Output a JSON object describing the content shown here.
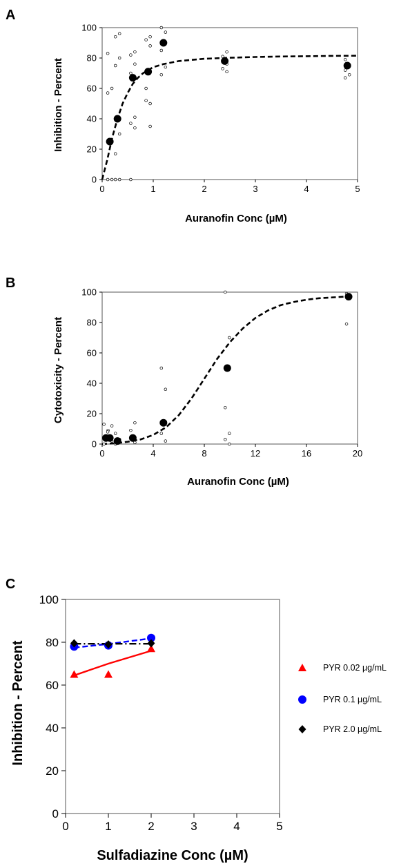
{
  "chart_data": [
    {
      "panel": "A",
      "type": "scatter",
      "xlabel": "Auranofin Conc (µM)",
      "ylabel": "Inhibition - Percent",
      "xlim": [
        0,
        5
      ],
      "ylim": [
        0,
        100
      ],
      "xticks": [
        "0",
        "1",
        "2",
        "3",
        "4",
        "5"
      ],
      "yticks": [
        "0",
        "20",
        "40",
        "60",
        "80",
        "100"
      ],
      "series": [
        {
          "role": "mean",
          "marker": "filled-circle",
          "x": [
            0.15,
            0.3,
            0.6,
            0.9,
            1.2,
            2.4,
            4.8
          ],
          "y": [
            25,
            40,
            67,
            71,
            90,
            78,
            75
          ]
        },
        {
          "role": "replicates",
          "marker": "open-circle",
          "x": [
            0.15,
            0.15,
            0.15,
            0.15,
            0.15,
            0.3,
            0.3,
            0.3,
            0.3,
            0.3,
            0.3,
            0.3,
            0.3,
            0.6,
            0.6,
            0.6,
            0.6,
            0.6,
            0.6,
            0.6,
            0.6,
            0.9,
            0.9,
            0.9,
            0.9,
            0.9,
            0.9,
            0.9,
            1.2,
            1.2,
            1.2,
            1.2,
            1.2,
            2.4,
            2.4,
            2.4,
            2.4,
            2.4,
            4.8,
            4.8,
            4.8,
            4.8,
            4.8
          ],
          "y": [
            83,
            60,
            57,
            0,
            0,
            96,
            94,
            80,
            75,
            30,
            17,
            0,
            0,
            84,
            82,
            76,
            70,
            41,
            37,
            34,
            0,
            94,
            92,
            88,
            60,
            50,
            52,
            35,
            100,
            97,
            85,
            74,
            69,
            84,
            81,
            76,
            73,
            71,
            79,
            75,
            72,
            69,
            67
          ]
        },
        {
          "role": "fit",
          "style": "dashed",
          "x": [
            0,
            0.1,
            0.2,
            0.3,
            0.4,
            0.5,
            0.6,
            0.7,
            0.8,
            0.9,
            1.0,
            1.2,
            1.5,
            2.0,
            2.5,
            3.0,
            3.5,
            4.0,
            4.5,
            5.0
          ],
          "y": [
            0,
            13,
            28,
            40,
            50,
            57,
            63,
            67,
            70,
            72,
            74,
            76,
            78,
            79.5,
            80.2,
            80.7,
            81,
            81.2,
            81.4,
            81.5
          ]
        }
      ]
    },
    {
      "panel": "B",
      "type": "scatter",
      "xlabel": "Auranofin Conc (µM)",
      "ylabel": "Cytotoxicity - Percent",
      "xlim": [
        0,
        20
      ],
      "ylim": [
        0,
        100
      ],
      "xticks": [
        "0",
        "4",
        "8",
        "12",
        "16",
        "20"
      ],
      "yticks": [
        "0",
        "20",
        "40",
        "60",
        "80",
        "100"
      ],
      "series": [
        {
          "role": "mean",
          "marker": "filled-circle",
          "x": [
            0.3,
            0.6,
            1.2,
            2.4,
            4.8,
            9.8,
            19.3
          ],
          "y": [
            4,
            4,
            2,
            4,
            14,
            50,
            97
          ]
        },
        {
          "role": "replicates",
          "marker": "open-circle",
          "x": [
            0.3,
            0.3,
            0.3,
            0.6,
            0.6,
            0.6,
            1.2,
            1.2,
            1.2,
            2.4,
            2.4,
            2.4,
            4.8,
            4.8,
            4.8,
            4.8,
            9.8,
            9.8,
            9.8,
            9.8,
            9.8,
            9.8,
            19.3,
            19.3,
            19.3
          ],
          "y": [
            13,
            9,
            0,
            12,
            8,
            2,
            7,
            3,
            0,
            14,
            9,
            1,
            50,
            36,
            7,
            2,
            100,
            70,
            24,
            7,
            3,
            0,
            99,
            97,
            79
          ]
        },
        {
          "role": "fit",
          "style": "dashed",
          "x": [
            0,
            1,
            2,
            3,
            4,
            5,
            6,
            7,
            8,
            9,
            10,
            11,
            12,
            13,
            14,
            15,
            16,
            17,
            18,
            19,
            19.5
          ],
          "y": [
            0,
            0.5,
            1.5,
            3,
            6,
            11,
            19,
            30,
            43,
            56,
            67,
            76,
            83,
            88,
            91.5,
            93.5,
            95,
            96,
            96.5,
            97,
            97
          ]
        }
      ]
    },
    {
      "panel": "C",
      "type": "line",
      "xlabel": "Sulfadiazine Conc (µM)",
      "ylabel": "Inhibition - Percent",
      "xlim": [
        0,
        5
      ],
      "ylim": [
        0,
        100
      ],
      "xticks": [
        "0",
        "1",
        "2",
        "3",
        "4",
        "5"
      ],
      "yticks": [
        "0",
        "20",
        "40",
        "60",
        "80",
        "100"
      ],
      "legend_position": "right",
      "series": [
        {
          "name": "PYR 0.02 µg/mL",
          "marker": "triangle",
          "color": "#ff0000",
          "line": "solid",
          "x": [
            0.2,
            1,
            2
          ],
          "y": [
            65,
            65,
            77
          ],
          "fit_y": [
            64.5,
            70,
            76
          ]
        },
        {
          "name": "PYR 0.1 µg/mL",
          "marker": "circle",
          "color": "#0000ff",
          "line": "dashed",
          "x": [
            0.2,
            1,
            2
          ],
          "y": [
            78,
            78.5,
            82
          ],
          "fit_y": [
            77.5,
            79.2,
            81.8
          ]
        },
        {
          "name": "PYR 2.0 µg/mL",
          "marker": "diamond",
          "color": "#000000",
          "line": "dash-dot",
          "x": [
            0.2,
            1,
            2
          ],
          "y": [
            79.5,
            79,
            79.5
          ],
          "fit_y": [
            79.3,
            79.3,
            79.3
          ]
        }
      ]
    }
  ],
  "panels": [
    {
      "letter": "A"
    },
    {
      "letter": "B"
    },
    {
      "letter": "C"
    }
  ]
}
